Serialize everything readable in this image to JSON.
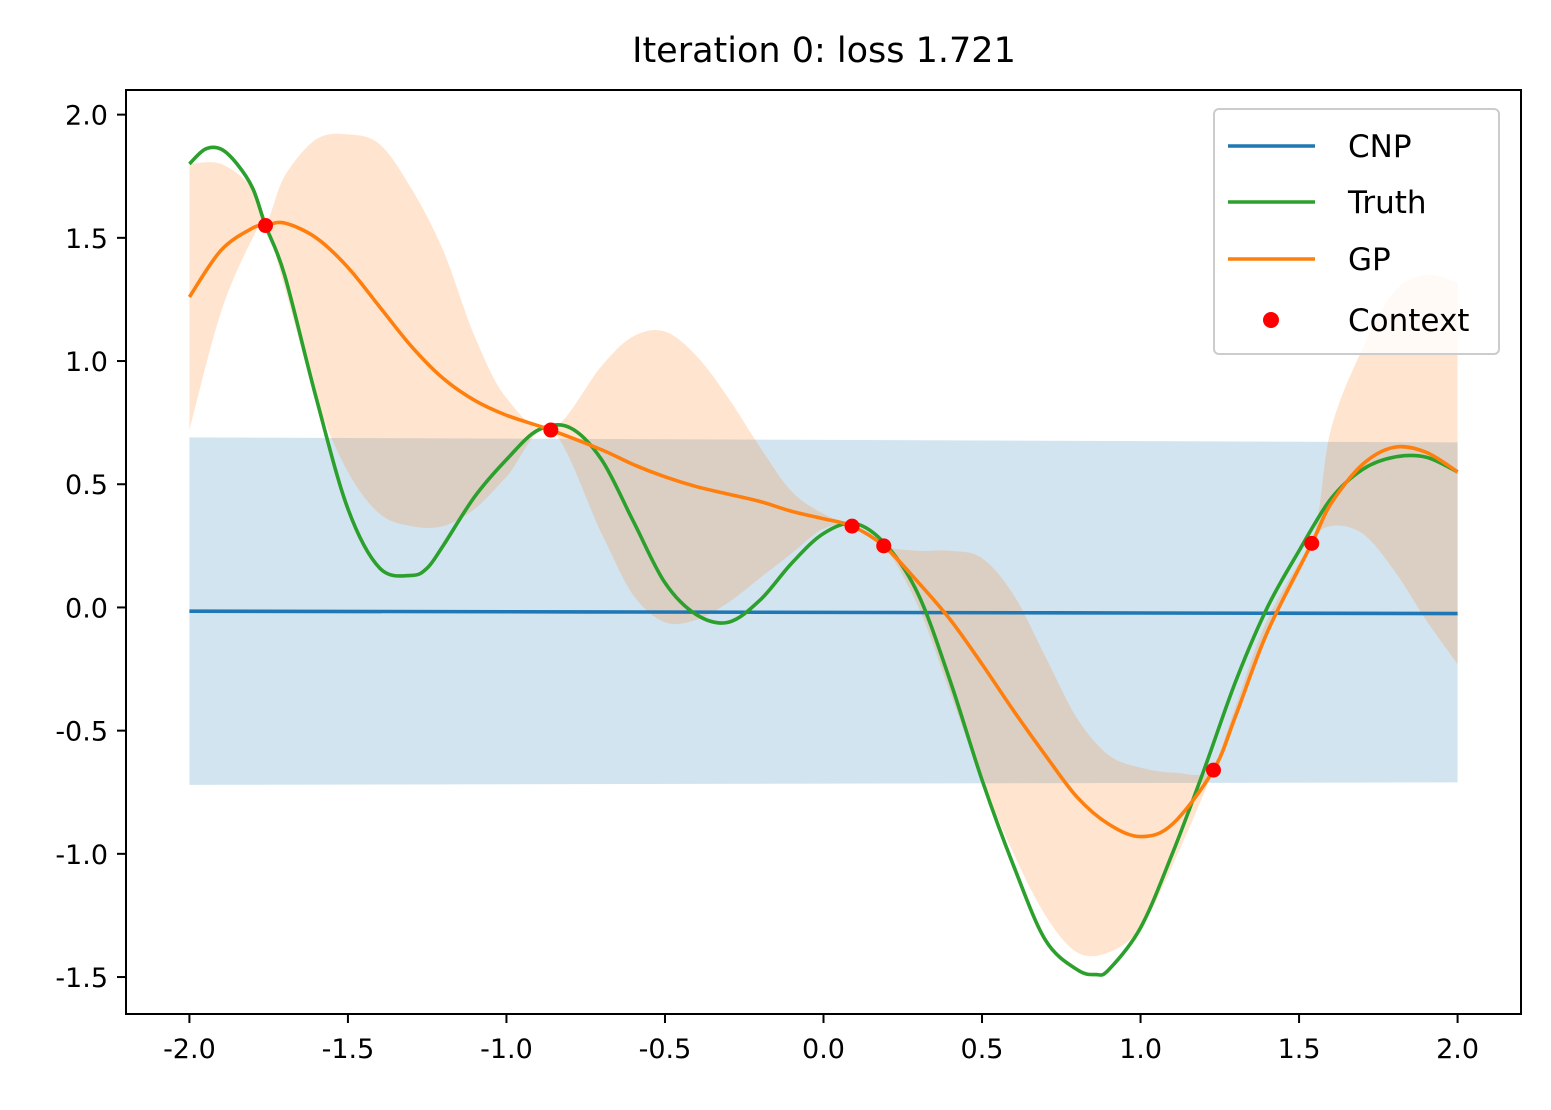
{
  "chart_data": {
    "type": "line",
    "title": "Iteration 0: loss 1.721",
    "xlabel": "",
    "ylabel": "",
    "xlim": [
      -2.2,
      2.2
    ],
    "ylim": [
      -1.65,
      2.1
    ],
    "xticks": [
      -2.0,
      -1.5,
      -1.0,
      -0.5,
      0.0,
      0.5,
      1.0,
      1.5,
      2.0
    ],
    "xtick_labels": [
      "-2.0",
      "-1.5",
      "-1.0",
      "-0.5",
      "0.0",
      "0.5",
      "1.0",
      "1.5",
      "2.0"
    ],
    "yticks": [
      -1.5,
      -1.0,
      -0.5,
      0.0,
      0.5,
      1.0,
      1.5,
      2.0
    ],
    "ytick_labels": [
      "-1.5",
      "-1.0",
      "-0.5",
      "0.0",
      "0.5",
      "1.0",
      "1.5",
      "2.0"
    ],
    "grid": false,
    "legend_position": "top-right",
    "series": [
      {
        "name": "CNP",
        "kind": "line",
        "color": "#1f77b4",
        "x": [
          -2.0,
          0.0,
          2.0
        ],
        "y": [
          -0.015,
          -0.02,
          -0.025
        ]
      },
      {
        "name": "Truth",
        "kind": "line",
        "color": "#2ca02c",
        "x": [
          -2.0,
          -1.95,
          -1.9,
          -1.85,
          -1.8,
          -1.76,
          -1.7,
          -1.6,
          -1.5,
          -1.4,
          -1.3,
          -1.25,
          -1.2,
          -1.1,
          -1.0,
          -0.9,
          -0.8,
          -0.7,
          -0.6,
          -0.5,
          -0.4,
          -0.3,
          -0.2,
          -0.1,
          0.0,
          0.1,
          0.2,
          0.3,
          0.4,
          0.5,
          0.6,
          0.7,
          0.8,
          0.86,
          0.9,
          1.0,
          1.1,
          1.2,
          1.3,
          1.4,
          1.5,
          1.6,
          1.7,
          1.8,
          1.9,
          2.0
        ],
        "y": [
          1.8,
          1.86,
          1.86,
          1.8,
          1.7,
          1.55,
          1.35,
          0.85,
          0.4,
          0.16,
          0.13,
          0.16,
          0.25,
          0.45,
          0.6,
          0.72,
          0.73,
          0.6,
          0.35,
          0.1,
          -0.03,
          -0.06,
          0.03,
          0.18,
          0.3,
          0.34,
          0.25,
          0.05,
          -0.3,
          -0.7,
          -1.05,
          -1.35,
          -1.47,
          -1.49,
          -1.47,
          -1.3,
          -1.0,
          -0.66,
          -0.3,
          0.0,
          0.23,
          0.44,
          0.56,
          0.61,
          0.61,
          0.55
        ]
      },
      {
        "name": "GP",
        "kind": "line",
        "color": "#ff7f0e",
        "band_color": "#ffe5ce",
        "x": [
          -2.0,
          -1.9,
          -1.8,
          -1.76,
          -1.7,
          -1.6,
          -1.5,
          -1.4,
          -1.3,
          -1.2,
          -1.1,
          -1.0,
          -0.86,
          -0.7,
          -0.6,
          -0.5,
          -0.4,
          -0.3,
          -0.2,
          -0.1,
          0.0,
          0.09,
          0.19,
          0.3,
          0.4,
          0.5,
          0.6,
          0.7,
          0.8,
          0.9,
          1.0,
          1.1,
          1.23,
          1.3,
          1.4,
          1.54,
          1.6,
          1.7,
          1.8,
          1.9,
          2.0
        ],
        "y": [
          1.26,
          1.45,
          1.54,
          1.55,
          1.56,
          1.5,
          1.38,
          1.22,
          1.06,
          0.93,
          0.84,
          0.78,
          0.72,
          0.64,
          0.58,
          0.53,
          0.49,
          0.46,
          0.43,
          0.39,
          0.36,
          0.33,
          0.25,
          0.1,
          -0.05,
          -0.23,
          -0.42,
          -0.6,
          -0.77,
          -0.88,
          -0.93,
          -0.88,
          -0.66,
          -0.44,
          -0.1,
          0.26,
          0.42,
          0.58,
          0.65,
          0.63,
          0.55
        ],
        "band_lower": [
          0.72,
          1.2,
          1.5,
          1.55,
          1.3,
          0.85,
          0.55,
          0.38,
          0.33,
          0.33,
          0.4,
          0.53,
          0.72,
          0.3,
          0.05,
          -0.06,
          -0.05,
          0.02,
          0.12,
          0.22,
          0.32,
          0.33,
          0.25,
          0.0,
          -0.35,
          -0.7,
          -1.0,
          -1.25,
          -1.4,
          -1.4,
          -1.3,
          -1.05,
          -0.66,
          -0.4,
          -0.05,
          0.26,
          0.33,
          0.3,
          0.15,
          -0.05,
          -0.23
        ],
        "band_upper": [
          1.8,
          1.8,
          1.7,
          1.56,
          1.75,
          1.9,
          1.92,
          1.88,
          1.7,
          1.45,
          1.1,
          0.85,
          0.72,
          0.98,
          1.1,
          1.12,
          1.02,
          0.85,
          0.65,
          0.47,
          0.38,
          0.33,
          0.25,
          0.23,
          0.23,
          0.2,
          0.05,
          -0.2,
          -0.45,
          -0.6,
          -0.65,
          -0.67,
          -0.66,
          -0.45,
          -0.1,
          0.26,
          0.72,
          1.05,
          1.28,
          1.35,
          1.32
        ]
      },
      {
        "name": "Context",
        "kind": "scatter",
        "color": "#ff0000",
        "x": [
          -1.76,
          -0.86,
          0.09,
          0.19,
          1.23,
          1.54
        ],
        "y": [
          1.55,
          0.72,
          0.33,
          0.25,
          -0.66,
          0.26
        ]
      }
    ],
    "cnp_band": {
      "color": "#1f77b4",
      "x": [
        -2.0,
        2.0
      ],
      "lower": [
        -0.72,
        -0.71
      ],
      "upper": [
        0.69,
        0.67
      ]
    }
  }
}
